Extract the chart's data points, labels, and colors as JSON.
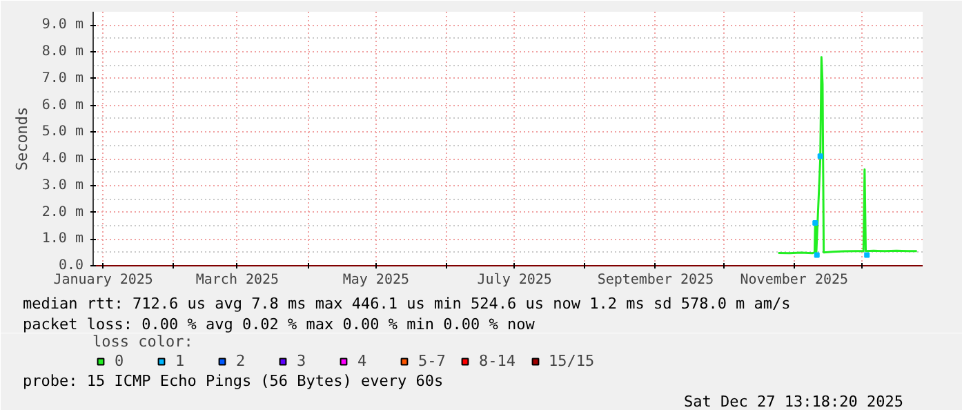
{
  "chart_data": {
    "type": "line",
    "ylabel": "Seconds",
    "legend_title": "loss color:",
    "xlim": [
      "2024-12-27T13:00",
      "2025-12-27T13:00"
    ],
    "xticks": [
      {
        "value": "2025-01-01",
        "label": "January 2025"
      },
      {
        "value": "2025-02-01",
        "label": null
      },
      {
        "value": "2025-03-01",
        "label": "March 2025"
      },
      {
        "value": "2025-04-01",
        "label": null
      },
      {
        "value": "2025-05-01",
        "label": "May 2025"
      },
      {
        "value": "2025-06-01",
        "label": null
      },
      {
        "value": "2025-07-01",
        "label": "July 2025"
      },
      {
        "value": "2025-08-01",
        "label": null
      },
      {
        "value": "2025-09-01",
        "label": "September 2025"
      },
      {
        "value": "2025-10-01",
        "label": null
      },
      {
        "value": "2025-11-01",
        "label": "November 2025"
      },
      {
        "value": "2025-12-01",
        "label": null
      }
    ],
    "ylim": [
      0,
      9.5
    ],
    "yticks": [
      {
        "value": 0,
        "label": "0.0"
      },
      {
        "value": 1,
        "label": "1.0 m"
      },
      {
        "value": 2,
        "label": "2.0 m"
      },
      {
        "value": 3,
        "label": "3.0 m"
      },
      {
        "value": 4,
        "label": "4.0 m"
      },
      {
        "value": 5,
        "label": "5.0 m"
      },
      {
        "value": 6,
        "label": "6.0 m"
      },
      {
        "value": 7,
        "label": "7.0 m"
      },
      {
        "value": 8,
        "label": "8.0 m"
      },
      {
        "value": 9,
        "label": "9.0 m"
      }
    ],
    "grid": true,
    "legend": "bottom",
    "series": [
      {
        "name": "0",
        "color": "#22ee22",
        "x": [
          "2025-10-25",
          "2025-10-30",
          "2025-11-04",
          "2025-11-09",
          "2025-11-10T00:00",
          "2025-11-10T06:00",
          "2025-11-10T18:00",
          "2025-11-12T12:00",
          "2025-11-13T00:00",
          "2025-11-13T12:00",
          "2025-11-14",
          "2025-11-18",
          "2025-11-23",
          "2025-11-28",
          "2025-12-01T12:00",
          "2025-12-02T00:00",
          "2025-12-02T12:00",
          "2025-12-06",
          "2025-12-11",
          "2025-12-16",
          "2025-12-21",
          "2025-12-25"
        ],
        "values": [
          0.48,
          0.47,
          0.49,
          0.47,
          0.5,
          1.6,
          0.5,
          4.0,
          7.8,
          6.8,
          0.5,
          0.52,
          0.54,
          0.55,
          0.55,
          3.6,
          0.55,
          0.56,
          0.55,
          0.56,
          0.55,
          0.55
        ]
      },
      {
        "name": "1",
        "color": "#00b8ff",
        "type": "scatter",
        "x": [
          "2025-11-10T06:00",
          "2025-11-11",
          "2025-11-12T12:00",
          "2025-12-03"
        ],
        "values": [
          1.6,
          0.4,
          4.1,
          0.4
        ]
      },
      {
        "name": "2",
        "color": "#0059ff"
      },
      {
        "name": "3",
        "color": "#5e00ff"
      },
      {
        "name": "4",
        "color": "#ff00ff"
      },
      {
        "name": "5-7",
        "color": "#ff5500"
      },
      {
        "name": "8-14",
        "color": "#ff0000"
      },
      {
        "name": "15/15",
        "color": "#a10000"
      }
    ],
    "annotations": [
      "median rtt:  712.6 us avg  7.8 ms max  446.1 us min  524.6 us now  1.2 ms sd  578.0 m am/s",
      "packet loss: 0.00 % avg  0.02 % max  0.00 % min  0.00 % now",
      "probe:       15 ICMP Echo Pings (56 Bytes) every 60s",
      "Sat Dec 27 13:18:20 2025"
    ]
  }
}
